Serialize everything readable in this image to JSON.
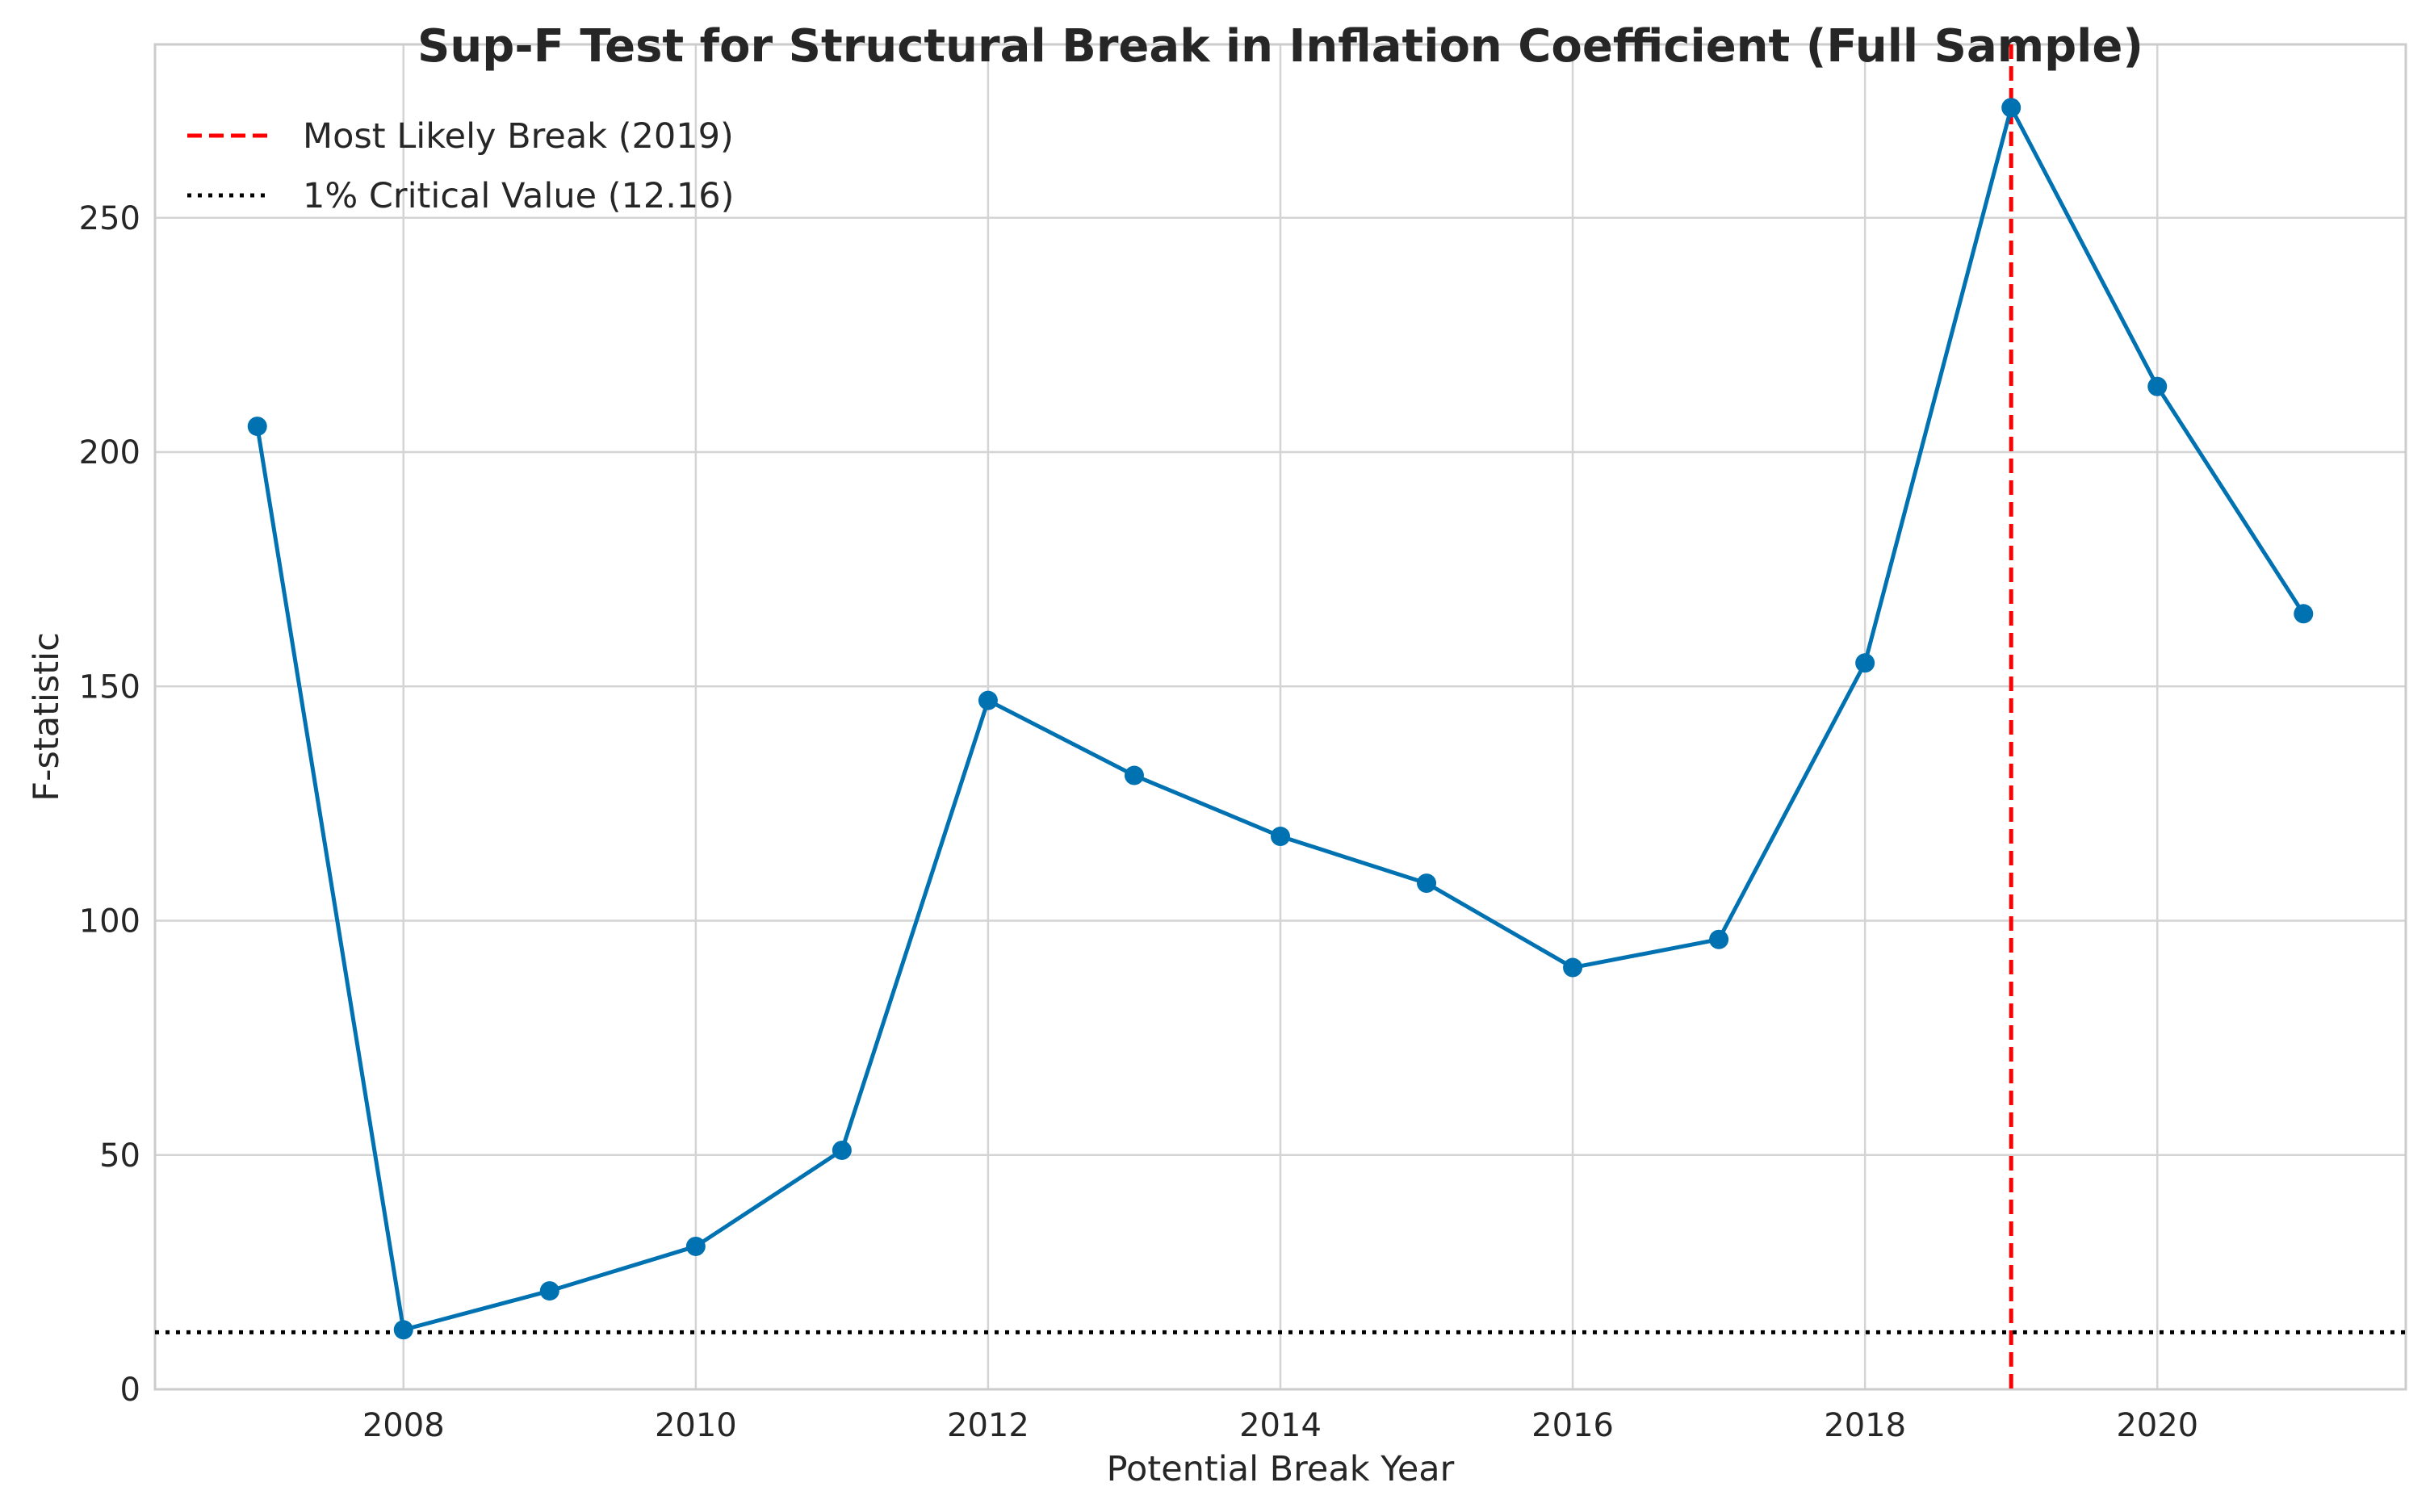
{
  "chart_data": {
    "type": "line",
    "title": "Sup-F Test for Structural Break in Inflation Coefficient (Full Sample)",
    "xlabel": "Potential Break Year",
    "ylabel": "F-statistic",
    "x": [
      2007,
      2008,
      2009,
      2010,
      2011,
      2012,
      2013,
      2014,
      2015,
      2016,
      2017,
      2018,
      2019,
      2020,
      2021
    ],
    "series": [
      {
        "values": [
          205.5,
          12.7,
          21.0,
          30.5,
          51.0,
          147.0,
          131.0,
          118.0,
          108.0,
          90.0,
          96.0,
          155.0,
          273.5,
          214.0,
          165.5
        ],
        "color": "#0072B2",
        "marker": "circle"
      }
    ],
    "reference_lines": [
      {
        "orientation": "vertical",
        "x": 2019,
        "label": "Most Likely Break (2019)",
        "color": "#ff0000",
        "style": "dashed"
      },
      {
        "orientation": "horizontal",
        "y": 12.16,
        "label": "1% Critical Value (12.16)",
        "color": "#000000",
        "style": "dotted"
      }
    ],
    "xlim": [
      2006.3,
      2021.7
    ],
    "ylim": [
      0,
      287
    ],
    "xticks": [
      2008,
      2010,
      2012,
      2014,
      2016,
      2018,
      2020
    ],
    "yticks": [
      0,
      50,
      100,
      150,
      200,
      250
    ],
    "grid": true,
    "legend_position": "top-left"
  }
}
